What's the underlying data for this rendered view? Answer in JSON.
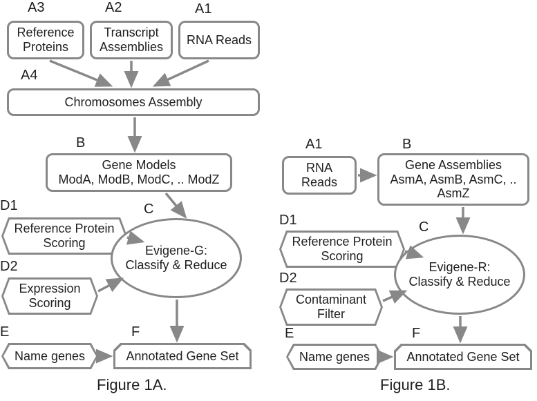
{
  "colors": {
    "stroke": "#888888",
    "text": "#202020",
    "bg": "#ffffff"
  },
  "fig1a": {
    "caption": "Figure 1A.",
    "labels": {
      "A1": "A1",
      "A2": "A2",
      "A3": "A3",
      "A4": "A4",
      "B": "B",
      "C": "C",
      "D1": "D1",
      "D2": "D2",
      "E": "E",
      "F": "F"
    },
    "nodes": {
      "a3": "Reference Proteins",
      "a2": "Transcript Assemblies",
      "a1": "RNA Reads",
      "a4": "Chromosomes Assembly",
      "b": "Gene Models\nModA, ModB, ModC, .. ModZ",
      "c": "Evigene-G:\nClassify & Reduce",
      "d1": "Reference Protein\nScoring",
      "d2": "Expression\nScoring",
      "e": "Name genes",
      "f": "Annotated Gene Set"
    }
  },
  "fig1b": {
    "caption": "Figure 1B.",
    "labels": {
      "A1": "A1",
      "B": "B",
      "C": "C",
      "D1": "D1",
      "D2": "D2",
      "E": "E",
      "F": "F"
    },
    "nodes": {
      "a1": "RNA Reads",
      "b": "Gene Assemblies\nAsmA, AsmB, AsmC, ..\nAsmZ",
      "c": "Evigene-R:\nClassify & Reduce",
      "d1": "Reference Protein\nScoring",
      "d2": "Contaminant\nFilter",
      "e": "Name genes",
      "f": "Annotated Gene Set"
    }
  },
  "layout": {
    "type": "flowchart",
    "stroke_width": 3,
    "arrow_color": "#888888",
    "border_radius": 10,
    "font_family": "Arial",
    "label_fontsize": 20,
    "node_fontsize": 18,
    "caption_fontsize": 22
  }
}
